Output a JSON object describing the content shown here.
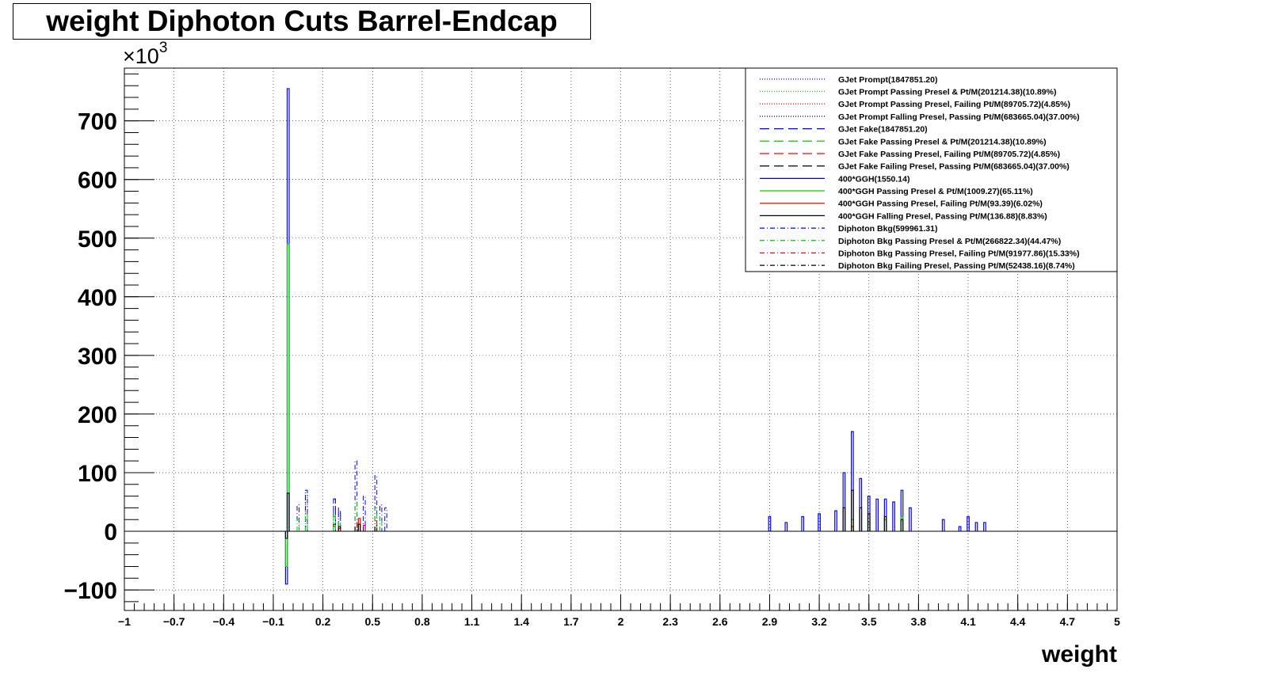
{
  "chart_data": {
    "type": "histogram",
    "title": "weight Diphoton Cuts Barrel-Endcap",
    "xlabel": "weight",
    "ylabel": "",
    "y_multiplier_label": "×10",
    "y_multiplier_exponent": "3",
    "xlim": [
      -1,
      5
    ],
    "ylim": [
      -135,
      790
    ],
    "x_ticks": [
      -1,
      -0.7,
      -0.4,
      -0.1,
      0.2,
      0.5,
      0.8,
      1.1,
      1.4,
      1.7,
      2,
      2.3,
      2.6,
      2.9,
      3.2,
      3.5,
      3.8,
      4.1,
      4.4,
      4.7,
      5
    ],
    "x_tick_labels": [
      "−1",
      "−0.7",
      "−0.4",
      "−0.1",
      "0.2",
      "0.5",
      "0.8",
      "1.1",
      "1.4",
      "1.7",
      "2",
      "2.3",
      "2.6",
      "2.9",
      "3.2",
      "3.5",
      "3.8",
      "4.1",
      "4.4",
      "4.7",
      "5"
    ],
    "y_ticks": [
      -100,
      0,
      100,
      200,
      300,
      400,
      500,
      600,
      700
    ],
    "y_tick_labels": [
      "−100",
      "0",
      "100",
      "200",
      "300",
      "400",
      "500",
      "600",
      "700"
    ],
    "grid": true,
    "legend_position": "top-right",
    "series": [
      {
        "name": "GJet Prompt(1847851.20)",
        "color": "#0000ff",
        "dash": "1,2",
        "width": 1,
        "bars": [
          [
            0.1,
            70
          ],
          [
            0.3,
            30
          ]
        ]
      },
      {
        "name": "GJet Prompt Passing Presel & Pt/M(201214.38)(10.89%)",
        "color": "#00cc00",
        "dash": "1,2",
        "width": 1,
        "bars": [
          [
            0.1,
            30
          ],
          [
            0.3,
            12
          ]
        ]
      },
      {
        "name": "GJet Prompt Passing Presel, Failing Pt/M(89705.72)(4.85%)",
        "color": "#ff0000",
        "dash": "1,2",
        "width": 1,
        "bars": [
          [
            0.1,
            8
          ],
          [
            0.3,
            4
          ]
        ]
      },
      {
        "name": "GJet Prompt Falling Presel, Passing Pt/M(683665.04)(37.00%)",
        "color": "#000000",
        "dash": "1,2",
        "width": 1,
        "bars": [
          [
            0.1,
            20
          ],
          [
            0.3,
            8
          ]
        ]
      },
      {
        "name": "GJet Fake(1847851.20)",
        "color": "#0000ff",
        "dash": "12,6",
        "width": 1,
        "bars": [
          [
            0.27,
            55
          ],
          [
            0.3,
            40
          ]
        ]
      },
      {
        "name": "GJet Fake Passing Presel & Pt/M(201214.38)(10.89%)",
        "color": "#00cc00",
        "dash": "12,6",
        "width": 1,
        "bars": [
          [
            0.27,
            25
          ],
          [
            0.3,
            18
          ]
        ]
      },
      {
        "name": "GJet Fake Passing Presel, Failing Pt/M(89705.72)(4.85%)",
        "color": "#ff0000",
        "dash": "12,6",
        "width": 1,
        "bars": [
          [
            0.27,
            8
          ],
          [
            0.3,
            5
          ]
        ]
      },
      {
        "name": "GJet Fake Failing Presel, Passing Pt/M(683665.04)(37.00%)",
        "color": "#000000",
        "dash": "12,6",
        "width": 1,
        "bars": [
          [
            0.27,
            12
          ],
          [
            0.3,
            8
          ]
        ]
      },
      {
        "name": "400*GGH(1550.14)",
        "color": "#0000ff",
        "dash": "",
        "width": 1.2,
        "bars": [
          [
            -0.01,
            755
          ],
          [
            -0.02,
            -90
          ],
          [
            2.9,
            25
          ],
          [
            3.0,
            15
          ],
          [
            3.1,
            25
          ],
          [
            3.2,
            30
          ],
          [
            3.3,
            35
          ],
          [
            3.35,
            100
          ],
          [
            3.4,
            170
          ],
          [
            3.45,
            90
          ],
          [
            3.5,
            60
          ],
          [
            3.55,
            55
          ],
          [
            3.6,
            55
          ],
          [
            3.65,
            50
          ],
          [
            3.7,
            70
          ],
          [
            3.75,
            40
          ],
          [
            3.95,
            20
          ],
          [
            4.05,
            8
          ],
          [
            4.1,
            25
          ],
          [
            4.15,
            15
          ],
          [
            4.2,
            15
          ]
        ]
      },
      {
        "name": "400*GGH Passing Presel & Pt/M(1009.27)(65.11%)",
        "color": "#00cc00",
        "dash": "",
        "width": 1.2,
        "bars": [
          [
            -0.01,
            490
          ],
          [
            -0.02,
            -60
          ],
          [
            3.4,
            20
          ],
          [
            3.5,
            15
          ],
          [
            3.6,
            20
          ],
          [
            3.7,
            25
          ]
        ]
      },
      {
        "name": "400*GGH Passing Presel, Failing Pt/M(93.39)(6.02%)",
        "color": "#ff0000",
        "dash": "",
        "width": 1.2,
        "bars": [
          [
            0.42,
            22
          ],
          [
            0.45,
            10
          ],
          [
            3.4,
            8
          ]
        ]
      },
      {
        "name": "400*GGH Falling Presel, Passing Pt/M(136.88)(8.83%)",
        "color": "#000000",
        "dash": "",
        "width": 1.2,
        "bars": [
          [
            -0.01,
            65
          ],
          [
            -0.02,
            -12
          ],
          [
            0.42,
            12
          ],
          [
            3.35,
            40
          ],
          [
            3.4,
            70
          ],
          [
            3.45,
            40
          ],
          [
            3.5,
            30
          ],
          [
            3.6,
            25
          ],
          [
            3.7,
            20
          ]
        ]
      },
      {
        "name": "Diphoton Bkg(599961.31)",
        "color": "#0000ff",
        "dash": "6,3,1,3",
        "width": 1,
        "bars": [
          [
            0.05,
            45
          ],
          [
            0.1,
            70
          ],
          [
            0.27,
            55
          ],
          [
            0.4,
            120
          ],
          [
            0.45,
            60
          ],
          [
            0.52,
            95
          ],
          [
            0.55,
            45
          ],
          [
            0.58,
            40
          ]
        ]
      },
      {
        "name": "Diphoton Bkg Passing Presel & Pt/M(266822.34)(44.47%)",
        "color": "#00cc00",
        "dash": "6,3,1,3",
        "width": 1,
        "bars": [
          [
            0.05,
            20
          ],
          [
            0.1,
            30
          ],
          [
            0.27,
            30
          ],
          [
            0.4,
            50
          ],
          [
            0.52,
            40
          ],
          [
            0.55,
            25
          ]
        ]
      },
      {
        "name": "Diphoton Bkg Passing Presel, Failing Pt/M(91977.86)(15.33%)",
        "color": "#ff0000",
        "dash": "6,3,1,3",
        "width": 1,
        "bars": [
          [
            0.4,
            15
          ],
          [
            0.52,
            18
          ]
        ]
      },
      {
        "name": "Diphoton Bkg Failing Presel, Passing Pt/M(52438.16)(8.74%)",
        "color": "#000000",
        "dash": "6,3,1,3",
        "width": 1,
        "bars": [
          [
            0.4,
            8
          ],
          [
            0.52,
            10
          ]
        ]
      }
    ]
  }
}
